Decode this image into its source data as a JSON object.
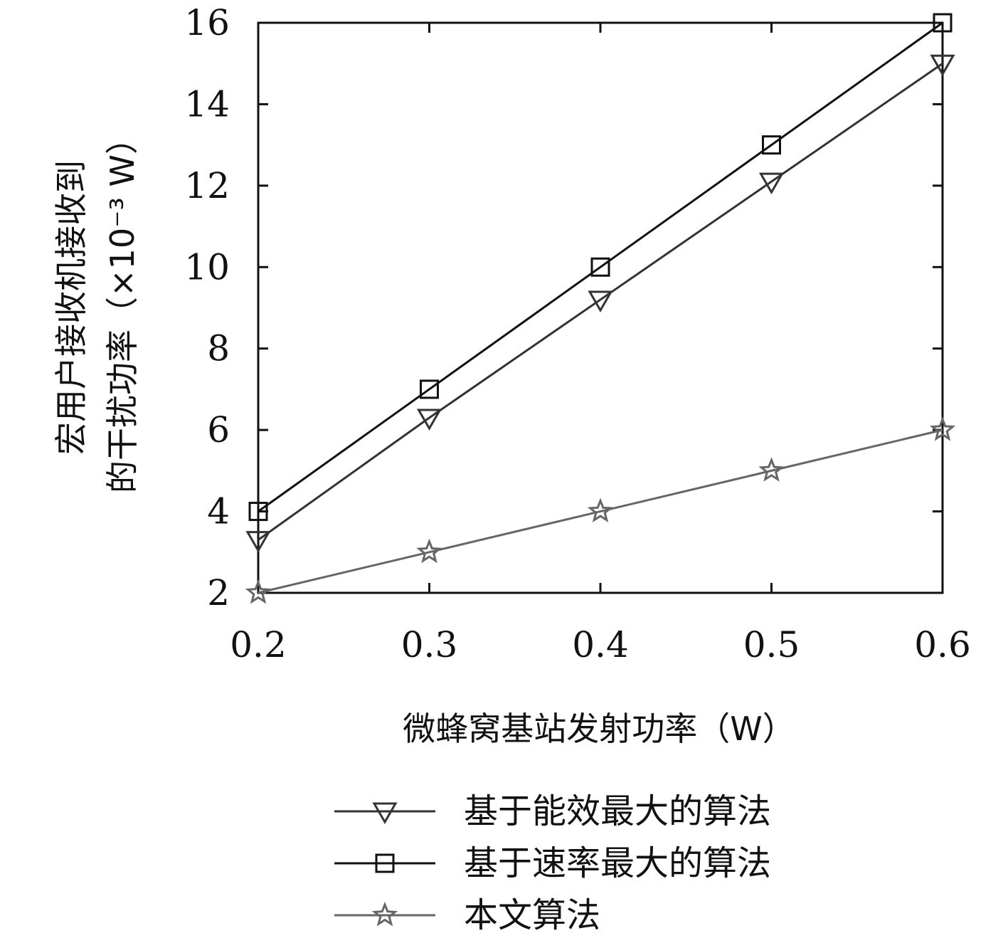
{
  "chart_data": {
    "type": "line",
    "xlabel": "微蜂窝基站发射功率（W）",
    "ylabel_line1": "宏用户接收机接收到",
    "ylabel_line2": "的干扰功率（×10⁻³ W）",
    "x": [
      0.2,
      0.3,
      0.4,
      0.5,
      0.6
    ],
    "x_ticks": [
      "0.2",
      "0.3",
      "0.4",
      "0.5",
      "0.6"
    ],
    "y_ticks": [
      "2",
      "4",
      "6",
      "8",
      "10",
      "12",
      "14",
      "16"
    ],
    "xlim": [
      0.2,
      0.6
    ],
    "ylim": [
      2,
      16
    ],
    "grid": false,
    "legend_position": "bottom",
    "series": [
      {
        "name": "基于能效最大的算法",
        "marker": "triangle-down",
        "color": "#333333",
        "values": [
          3.3,
          6.3,
          9.2,
          12.1,
          15.0
        ]
      },
      {
        "name": "基于速率最大的算法",
        "marker": "square",
        "color": "#111111",
        "values": [
          4.0,
          7.0,
          10.0,
          13.0,
          16.0
        ]
      },
      {
        "name": "本文算法",
        "marker": "star",
        "color": "#666666",
        "values": [
          2.0,
          3.0,
          4.0,
          5.0,
          6.0
        ]
      }
    ]
  }
}
